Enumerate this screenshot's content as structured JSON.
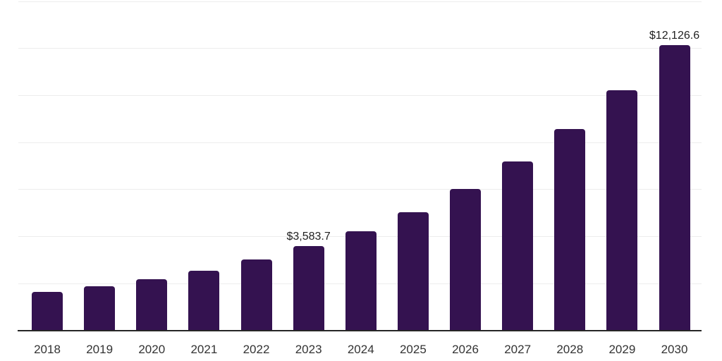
{
  "chart": {
    "background_color": "#ffffff",
    "bar_color": "#341250",
    "gridline_color": "#ededed",
    "axis_line_color": "#262626",
    "tick_label_color": "#333333",
    "data_label_color": "#1f1f1f"
  },
  "chart_data": {
    "type": "bar",
    "title": "",
    "xlabel": "",
    "ylabel": "",
    "categories": [
      "2018",
      "2019",
      "2020",
      "2021",
      "2022",
      "2023",
      "2024",
      "2025",
      "2026",
      "2027",
      "2028",
      "2029",
      "2030"
    ],
    "values": [
      1650,
      1900,
      2200,
      2560,
      3040,
      3583.7,
      4240,
      5030,
      6020,
      7190,
      8580,
      10230,
      12126.6
    ],
    "visible_data_labels": [
      {
        "category": "2023",
        "text": "$3,583.7"
      },
      {
        "category": "2030",
        "text": "$12,126.6"
      }
    ],
    "ylim": [
      0,
      14000
    ],
    "gridline_interval": 2000,
    "grid": "horizontal",
    "legend": "none"
  }
}
